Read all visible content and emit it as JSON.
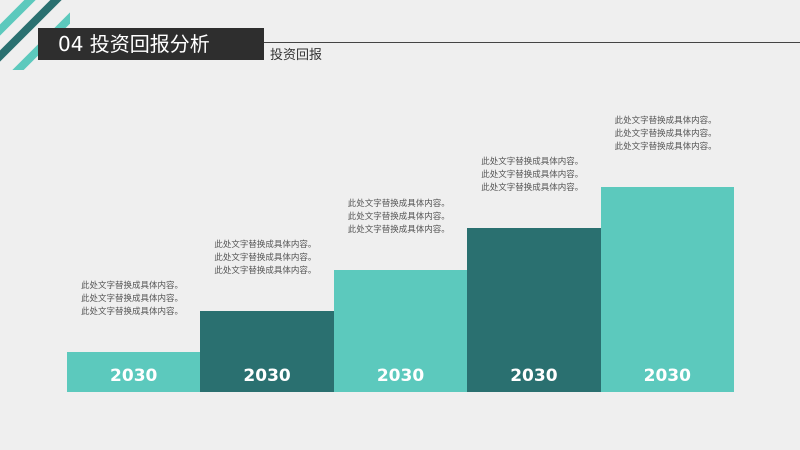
{
  "header": {
    "title": "04 投资回报分析",
    "subtitle": "投资回报"
  },
  "chart_data": {
    "type": "bar",
    "categories": [
      "2030",
      "2030",
      "2030",
      "2030",
      "2030"
    ],
    "values": [
      1,
      2,
      3,
      4,
      5
    ],
    "colors": [
      "#5cc9bd",
      "#2a7070",
      "#5cc9bd",
      "#2a7070",
      "#5cc9bd"
    ],
    "notes": [
      [
        "此处文字替换成具体内容。",
        "此处文字替换成具体内容。",
        "此处文字替换成具体内容。"
      ],
      [
        "此处文字替换成具体内容。",
        "此处文字替换成具体内容。",
        "此处文字替换成具体内容。"
      ],
      [
        "此处文字替换成具体内容。",
        "此处文字替换成具体内容。",
        "此处文字替换成具体内容。"
      ],
      [
        "此处文字替换成具体内容。",
        "此处文字替换成具体内容。",
        "此处文字替换成具体内容。"
      ],
      [
        "此处文字替换成具体内容。",
        "此处文字替换成具体内容。",
        "此处文字替换成具体内容。"
      ]
    ]
  }
}
